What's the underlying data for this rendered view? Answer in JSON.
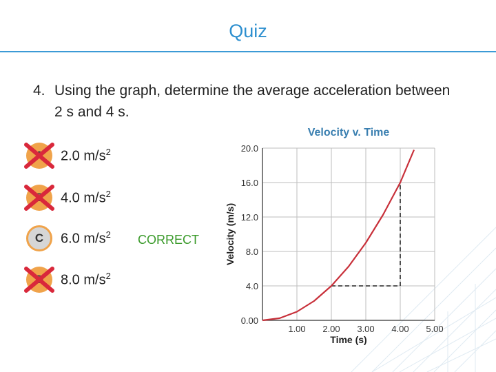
{
  "title": "Quiz",
  "question": {
    "number": "4.",
    "text": "Using the graph, determine the average acceleration between 2 s and 4 s."
  },
  "options": [
    {
      "letter": "A",
      "value": "2.0 m/s",
      "exp": "2",
      "state": "wrong"
    },
    {
      "letter": "B",
      "value": "4.0 m/s",
      "exp": "2",
      "state": "wrong"
    },
    {
      "letter": "C",
      "value": "6.0 m/s",
      "exp": "2",
      "state": "correct"
    },
    {
      "letter": "D",
      "value": "8.0 m/s",
      "exp": "2",
      "state": "wrong"
    }
  ],
  "feedback": {
    "correct_label": "CORRECT"
  },
  "colors": {
    "accent": "#2d8fcf",
    "bubble": "#f0a34a",
    "wrong_mark": "#d9283b",
    "correct_text": "#3a9a2a",
    "curve": "#c8303a"
  },
  "chart_data": {
    "type": "line",
    "title": "Velocity v. Time",
    "xlabel": "Time (s)",
    "ylabel": "Velocity (m/s)",
    "x_ticks": [
      "1.00",
      "2.00",
      "3.00",
      "4.00",
      "5.00"
    ],
    "y_ticks": [
      "0.00",
      "4.0",
      "8.0",
      "12.0",
      "16.0",
      "20.0"
    ],
    "xlim": [
      0,
      5
    ],
    "ylim": [
      0,
      20
    ],
    "grid": true,
    "series": [
      {
        "x": [
          0,
          0.5,
          1,
          1.5,
          2,
          2.5,
          3,
          3.5,
          4,
          4.4
        ],
        "y": [
          0,
          0.25,
          1,
          2.25,
          4,
          6.25,
          9,
          12.25,
          16,
          19.8
        ]
      }
    ],
    "annotations": [
      {
        "from": [
          2,
          4
        ],
        "to": [
          4,
          4
        ],
        "style": "dashed"
      },
      {
        "from": [
          4,
          4
        ],
        "to": [
          4,
          16
        ],
        "style": "dashed"
      }
    ]
  }
}
